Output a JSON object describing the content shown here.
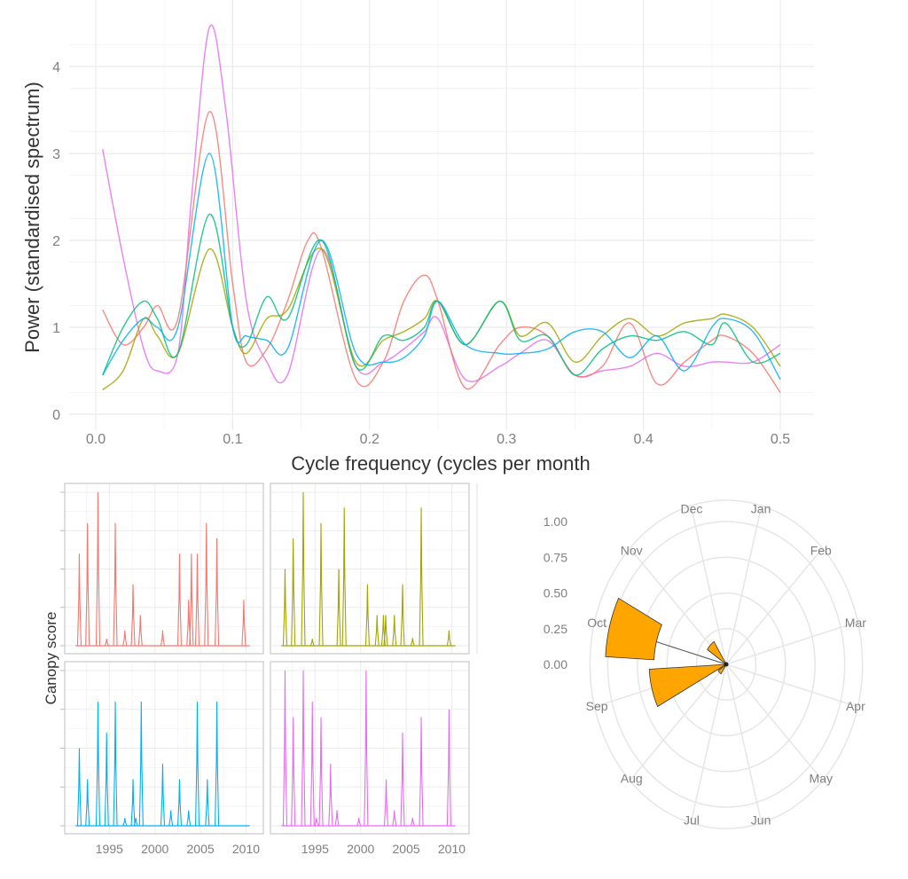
{
  "chart_data": [
    {
      "type": "line",
      "xlabel": "Cycle frequency (cycles per month",
      "ylabel": "Power (standardised spectrum)",
      "xlim": [
        0,
        0.5
      ],
      "ylim": [
        0,
        4.5
      ],
      "xticks": [
        "0.0",
        "0.1",
        "0.2",
        "0.3",
        "0.4",
        "0.5"
      ],
      "yticks": [
        "0",
        "1",
        "2",
        "3",
        "4"
      ],
      "grid": true,
      "legend": "none",
      "series": [
        {
          "color": "#E76BF3",
          "x": [
            0.005,
            0.02,
            0.035,
            0.045,
            0.06,
            0.07,
            0.083,
            0.095,
            0.11,
            0.125,
            0.14,
            0.165,
            0.19,
            0.21,
            0.225,
            0.24,
            0.25,
            0.27,
            0.295,
            0.31,
            0.33,
            0.35,
            0.37,
            0.39,
            0.41,
            0.43,
            0.45,
            0.46,
            0.48,
            0.5
          ],
          "y": [
            3.05,
            1.8,
            0.75,
            0.5,
            0.7,
            2.5,
            4.45,
            3.5,
            1.3,
            0.6,
            0.45,
            1.9,
            0.55,
            0.6,
            0.75,
            0.95,
            1.1,
            0.4,
            0.55,
            0.7,
            0.85,
            0.45,
            0.5,
            0.55,
            0.7,
            0.55,
            0.6,
            0.6,
            0.6,
            0.8
          ]
        },
        {
          "color": "#F8766D",
          "x": [
            0.005,
            0.02,
            0.035,
            0.045,
            0.06,
            0.083,
            0.1,
            0.11,
            0.125,
            0.14,
            0.155,
            0.165,
            0.19,
            0.21,
            0.225,
            0.24,
            0.25,
            0.27,
            0.295,
            0.31,
            0.33,
            0.35,
            0.37,
            0.39,
            0.41,
            0.43,
            0.45,
            0.46,
            0.48,
            0.5
          ],
          "y": [
            1.2,
            0.8,
            1.0,
            1.25,
            1.1,
            3.48,
            1.5,
            0.6,
            0.75,
            1.3,
            2.0,
            1.9,
            0.4,
            0.6,
            1.3,
            1.6,
            1.3,
            0.3,
            0.8,
            1.0,
            0.9,
            0.45,
            0.55,
            1.05,
            0.35,
            0.6,
            0.85,
            0.9,
            0.7,
            0.25
          ]
        },
        {
          "color": "#A3A500",
          "x": [
            0.005,
            0.02,
            0.035,
            0.045,
            0.06,
            0.083,
            0.1,
            0.11,
            0.125,
            0.14,
            0.165,
            0.19,
            0.21,
            0.225,
            0.24,
            0.25,
            0.27,
            0.295,
            0.31,
            0.33,
            0.35,
            0.37,
            0.39,
            0.41,
            0.43,
            0.45,
            0.46,
            0.48,
            0.5
          ],
          "y": [
            0.28,
            0.5,
            1.1,
            0.9,
            0.7,
            1.9,
            1.0,
            0.7,
            1.1,
            1.2,
            1.9,
            0.6,
            0.85,
            0.95,
            1.1,
            1.3,
            0.8,
            1.3,
            0.9,
            1.05,
            0.6,
            0.9,
            1.1,
            0.9,
            1.05,
            1.1,
            1.15,
            1.0,
            0.55
          ]
        },
        {
          "color": "#00BF7D",
          "x": [
            0.005,
            0.02,
            0.035,
            0.045,
            0.06,
            0.083,
            0.1,
            0.11,
            0.125,
            0.14,
            0.165,
            0.19,
            0.21,
            0.225,
            0.24,
            0.25,
            0.27,
            0.295,
            0.31,
            0.33,
            0.35,
            0.37,
            0.39,
            0.41,
            0.43,
            0.45,
            0.46,
            0.48,
            0.5
          ],
          "y": [
            0.45,
            1.0,
            1.3,
            1.1,
            0.7,
            2.3,
            1.0,
            0.8,
            1.35,
            1.1,
            2.0,
            0.55,
            0.9,
            0.85,
            1.0,
            1.3,
            0.8,
            1.3,
            0.85,
            0.9,
            0.45,
            0.75,
            0.9,
            0.85,
            0.95,
            0.8,
            1.05,
            0.6,
            0.7
          ]
        },
        {
          "color": "#00B0F6",
          "x": [
            0.005,
            0.02,
            0.035,
            0.045,
            0.06,
            0.083,
            0.1,
            0.11,
            0.125,
            0.14,
            0.165,
            0.19,
            0.21,
            0.225,
            0.24,
            0.25,
            0.27,
            0.295,
            0.31,
            0.33,
            0.35,
            0.37,
            0.39,
            0.41,
            0.43,
            0.45,
            0.46,
            0.48,
            0.5
          ],
          "y": [
            0.45,
            0.85,
            1.1,
            1.0,
            1.0,
            3.0,
            1.0,
            0.9,
            0.85,
            0.75,
            2.0,
            0.7,
            0.6,
            0.65,
            0.9,
            1.3,
            0.8,
            0.7,
            0.7,
            0.75,
            0.95,
            0.95,
            0.65,
            0.9,
            0.5,
            1.0,
            1.1,
            0.95,
            0.4
          ]
        }
      ]
    },
    {
      "type": "bar",
      "ylabel": "Canopy score",
      "xlim": [
        1990.1,
        2011.9
      ],
      "ylim": [
        0,
        4
      ],
      "xticks": [
        "1995",
        "2000",
        "2005",
        "2010"
      ],
      "grid": true,
      "facets": [
        {
          "color": "#F8766D",
          "years": [
            1991.7,
            1992.6,
            1993.75,
            1994.7,
            1995.65,
            1996.7,
            1997.6,
            1998.4,
            2000.85,
            2002.7,
            2003.7,
            2004.0,
            2004.65,
            2005.65,
            2006.8,
            2009.75
          ],
          "values": [
            2.4,
            3.2,
            4.0,
            0.18,
            3.2,
            0.4,
            1.6,
            0.8,
            0.4,
            2.4,
            1.2,
            2.4,
            2.4,
            3.2,
            2.8,
            1.2
          ]
        },
        {
          "color": "#A3A500",
          "years": [
            1991.7,
            1992.6,
            1993.7,
            1994.7,
            1995.65,
            1997.6,
            1998.2,
            2000.75,
            2001.8,
            2002.5,
            2002.75,
            2003.7,
            2004.6,
            2005.7,
            2006.65,
            2009.7
          ],
          "values": [
            2.0,
            2.8,
            4.0,
            0.18,
            3.2,
            2.0,
            3.6,
            1.6,
            0.8,
            0.8,
            0.8,
            0.8,
            1.6,
            0.2,
            3.6,
            0.4
          ]
        },
        {
          "color": "#00B0F6",
          "years": [
            1991.7,
            1992.6,
            1993.75,
            1994.7,
            1995.65,
            1996.7,
            1997.6,
            1997.9,
            1998.5,
            2000.85,
            2001.75,
            2002.7,
            2003.7,
            2004.65,
            2005.75,
            2006.8
          ],
          "values": [
            2.0,
            1.2,
            3.2,
            2.4,
            3.2,
            0.2,
            1.2,
            0.2,
            3.2,
            1.6,
            0.4,
            1.2,
            0.4,
            3.2,
            1.2,
            3.2
          ]
        },
        {
          "color": "#E76BF3",
          "years": [
            1991.7,
            1992.6,
            1993.7,
            1994.7,
            1995.15,
            1995.65,
            1996.7,
            1997.4,
            1999.8,
            2000.6,
            2002.8,
            2003.7,
            2004.6,
            2005.7,
            2006.65,
            2009.7
          ],
          "values": [
            4.0,
            2.8,
            4.0,
            3.2,
            0.2,
            2.8,
            1.6,
            0.4,
            0.2,
            4.0,
            1.2,
            0.4,
            2.4,
            0.2,
            2.8,
            3.0
          ]
        }
      ]
    },
    {
      "type": "bar",
      "subtype": "polar",
      "ylim": [
        0,
        1
      ],
      "yticks": [
        "0.00",
        "0.25",
        "0.50",
        "0.75",
        "1.00"
      ],
      "months": [
        "Jan",
        "Feb",
        "Mar",
        "Apr",
        "May",
        "Jun",
        "Jul",
        "Aug",
        "Sep",
        "Oct",
        "Nov",
        "Dec"
      ],
      "bar_color": "#FFA500",
      "bars": [
        {
          "month": "Oct",
          "ymin": 0.61,
          "ymax": 1.02
        },
        {
          "month": "Sep",
          "ymin": 0.0,
          "ymax": 0.65
        },
        {
          "month": "Nov",
          "ymin": 0.0,
          "ymax": 0.19
        },
        {
          "month": "Aug",
          "ymin": 0.0,
          "ymax": 0.08
        }
      ]
    }
  ]
}
